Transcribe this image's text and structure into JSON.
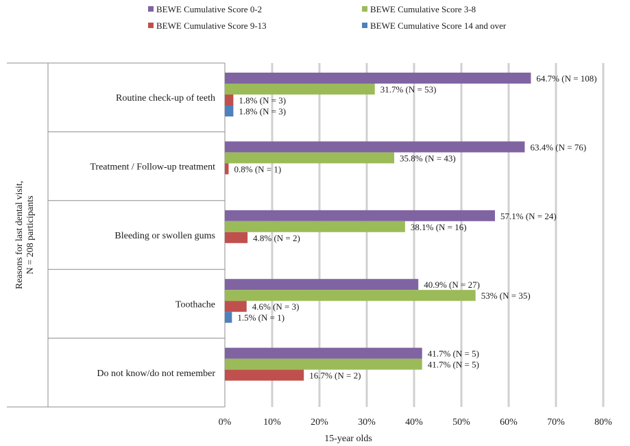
{
  "chart_data": {
    "type": "bar",
    "orientation": "horizontal",
    "xlabel": "15-year olds",
    "ylabel": "Reasons for last dental visit,\nN = 208 participants",
    "xlim": [
      0,
      80
    ],
    "x_ticks": [
      "0%",
      "10%",
      "20%",
      "30%",
      "40%",
      "50%",
      "60%",
      "70%",
      "80%"
    ],
    "grid": true,
    "legend_position": "top",
    "categories": [
      "Routine check-up of teeth",
      "Treatment / Follow-up treatment",
      "Bleeding or swollen gums",
      "Toothache",
      "Do not know/do not remember"
    ],
    "series": [
      {
        "name": "BEWE Cumulative Score 0-2",
        "color": "#8064a2",
        "values": [
          64.7,
          63.4,
          57.1,
          40.9,
          41.7
        ],
        "labels": [
          "64.7% (N = 108)",
          "63.4% (N = 76)",
          "57.1% (N = 24)",
          "40.9% (N = 27)",
          "41.7% (N = 5)"
        ]
      },
      {
        "name": "BEWE Cumulative Score 3-8",
        "color": "#9bbb59",
        "values": [
          31.7,
          35.8,
          38.1,
          53,
          41.7
        ],
        "labels": [
          "31.7% (N = 53)",
          "35.8% (N = 43)",
          "38.1% (N = 16)",
          "53% (N = 35)",
          "41.7% (N = 5)"
        ]
      },
      {
        "name": "BEWE Cumulative Score 9-13",
        "color": "#c0504d",
        "values": [
          1.8,
          0.8,
          4.8,
          4.6,
          16.7
        ],
        "labels": [
          "1.8% (N = 3)",
          "0.8% (N = 1)",
          "4.8% (N = 2)",
          "4.6% (N = 3)",
          "16.7% (N = 2)"
        ]
      },
      {
        "name": "BEWE Cumulative Score 14 and over",
        "color": "#4f81bd",
        "values": [
          1.8,
          null,
          null,
          1.5,
          null
        ],
        "labels": [
          "1.8% (N = 3)",
          "",
          "",
          "1.5% (N = 1)",
          ""
        ]
      }
    ]
  }
}
